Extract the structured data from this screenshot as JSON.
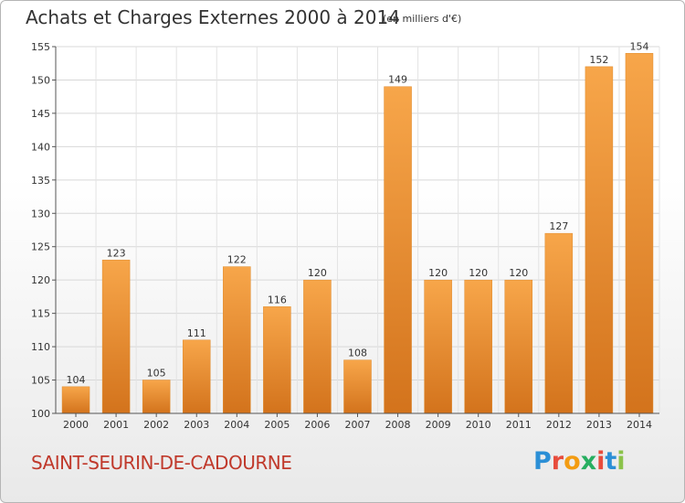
{
  "header": {
    "title": "Achats et Charges Externes 2000 à 2014",
    "subtitle": "(en milliers d'€)"
  },
  "footer": {
    "city": "SAINT-SEURIN-DE-CADOURNE",
    "logo": {
      "letters": [
        "P",
        "r",
        "o",
        "x",
        "i",
        "t",
        "i"
      ],
      "colors": [
        "#2b8fd6",
        "#e74c3c",
        "#f39c12",
        "#27ae60",
        "#e74c3c",
        "#2b8fd6",
        "#8bc34a"
      ]
    }
  },
  "chart_data": {
    "type": "bar",
    "title": "Achats et Charges Externes 2000 à 2014",
    "subtitle": "(en milliers d'€)",
    "categories": [
      "2000",
      "2001",
      "2002",
      "2003",
      "2004",
      "2005",
      "2006",
      "2007",
      "2008",
      "2009",
      "2010",
      "2011",
      "2012",
      "2013",
      "2014"
    ],
    "values": [
      104,
      123,
      105,
      111,
      122,
      116,
      120,
      108,
      149,
      120,
      120,
      120,
      127,
      152,
      154
    ],
    "ylim": [
      100,
      155
    ],
    "yticks": [
      100,
      105,
      110,
      115,
      120,
      125,
      130,
      135,
      140,
      145,
      150,
      155
    ],
    "grid": true,
    "bar_color": "#f29a3a",
    "bar_color_dark": "#d3731c",
    "data_labels": true
  }
}
